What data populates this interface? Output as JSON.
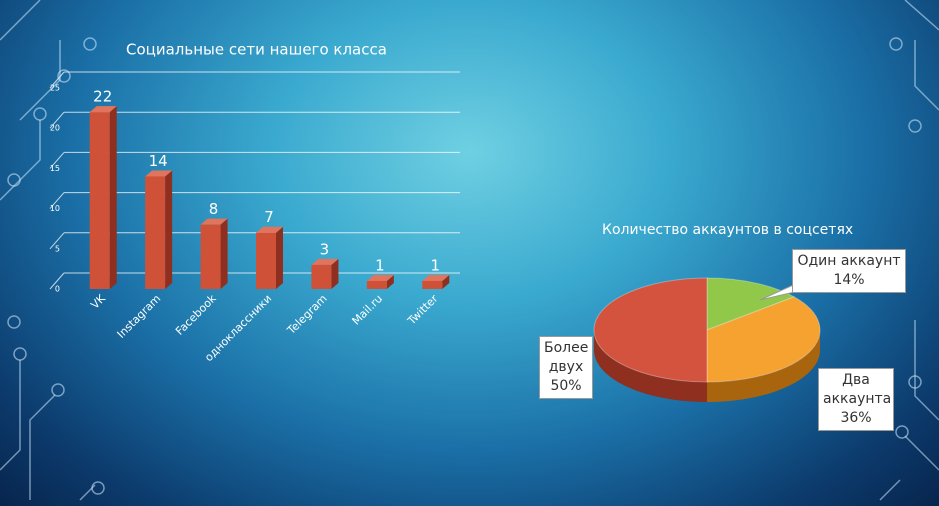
{
  "chart_data": [
    {
      "type": "bar",
      "title": "Социальные сети нашего класса",
      "categories": [
        "VK",
        "Instagram",
        "Facebook",
        "одноклассники",
        "Telegram",
        "Mail.ru",
        "Twitter"
      ],
      "values": [
        22,
        14,
        8,
        7,
        3,
        1,
        1
      ],
      "color": "#cf5138",
      "ylim": [
        0,
        25
      ],
      "yticks": [
        0,
        5,
        10,
        15,
        20,
        25
      ],
      "grid": true
    },
    {
      "type": "pie",
      "title": "Количество аккаунтов в соцсетях",
      "categories": [
        "Один аккаунт",
        "Два аккаунта",
        "Более двух"
      ],
      "values": [
        14,
        36,
        50
      ],
      "value_labels": [
        "14%",
        "36%",
        "50%"
      ],
      "colors": [
        "#92c84a",
        "#f5a231",
        "#d4533e"
      ]
    }
  ]
}
